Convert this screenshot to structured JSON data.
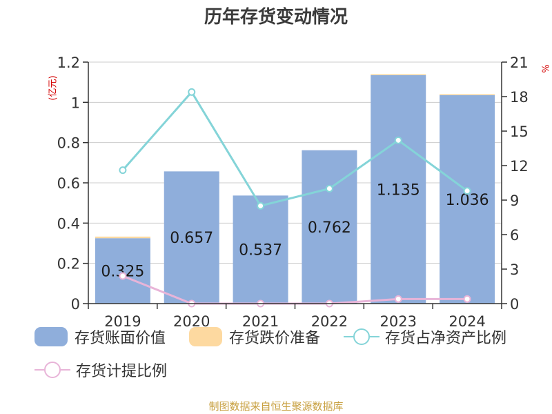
{
  "title": "历年存货变动情况",
  "left_unit": "(亿元)",
  "right_unit": "%",
  "source": "制图数据来自恒生聚源数据库",
  "chart_data": {
    "type": "bar",
    "title": "历年存货变动情况",
    "categories": [
      "2019",
      "2020",
      "2021",
      "2022",
      "2023",
      "2024"
    ],
    "y_left": {
      "label": "(亿元)",
      "ylim": [
        0,
        1.2
      ],
      "ticks": [
        "0",
        "0.2",
        "0.4",
        "0.6",
        "0.8",
        "1",
        "1.2"
      ]
    },
    "y_right": {
      "label": "%",
      "ylim": [
        0,
        21
      ],
      "ticks": [
        "0",
        "3",
        "6",
        "9",
        "12",
        "15",
        "18",
        "21"
      ]
    },
    "grid": true,
    "legend_position": "bottom",
    "series": [
      {
        "name": "存货账面价值",
        "kind": "bar",
        "axis": "left",
        "color": "#8faedb",
        "values": [
          0.325,
          0.657,
          0.537,
          0.762,
          1.135,
          1.036
        ],
        "labels": [
          "0.325",
          "0.657",
          "0.537",
          "0.762",
          "1.135",
          "1.036"
        ]
      },
      {
        "name": "存货跌价准备",
        "kind": "bar",
        "axis": "left",
        "color": "#fdd9a0",
        "values": [
          0.008,
          0,
          0,
          0,
          0.005,
          0.005
        ]
      },
      {
        "name": "存货占净资产比例",
        "kind": "line",
        "axis": "right",
        "color": "#84d4d8",
        "values": [
          11.6,
          18.4,
          8.5,
          10.0,
          14.2,
          9.8
        ]
      },
      {
        "name": "存货计提比例",
        "kind": "line",
        "axis": "right",
        "color": "#e8b4d8",
        "values": [
          2.4,
          0.0,
          0.0,
          0.0,
          0.4,
          0.4
        ]
      }
    ]
  }
}
